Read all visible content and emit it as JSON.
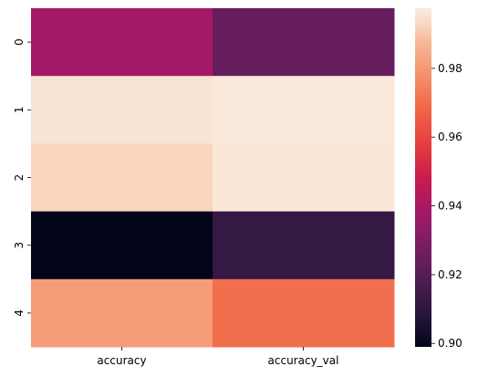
{
  "chart_data": {
    "type": "heatmap",
    "title": "",
    "xlabel": "",
    "ylabel": "",
    "columns": [
      "accuracy",
      "accuracy_val"
    ],
    "rows": [
      "0",
      "1",
      "2",
      "3",
      "4"
    ],
    "values": [
      [
        0.939,
        0.924
      ],
      [
        0.9955,
        0.997
      ],
      [
        0.9925,
        0.9965
      ],
      [
        0.899,
        0.912
      ],
      [
        0.981,
        0.97
      ]
    ],
    "colormap": "rocket",
    "colorbar": {
      "vmin": 0.899,
      "vmax": 0.9975,
      "ticks": [
        0.9,
        0.92,
        0.94,
        0.96,
        0.98
      ],
      "tick_labels": [
        "0.90",
        "0.92",
        "0.94",
        "0.96",
        "0.98"
      ]
    },
    "grid": false
  }
}
